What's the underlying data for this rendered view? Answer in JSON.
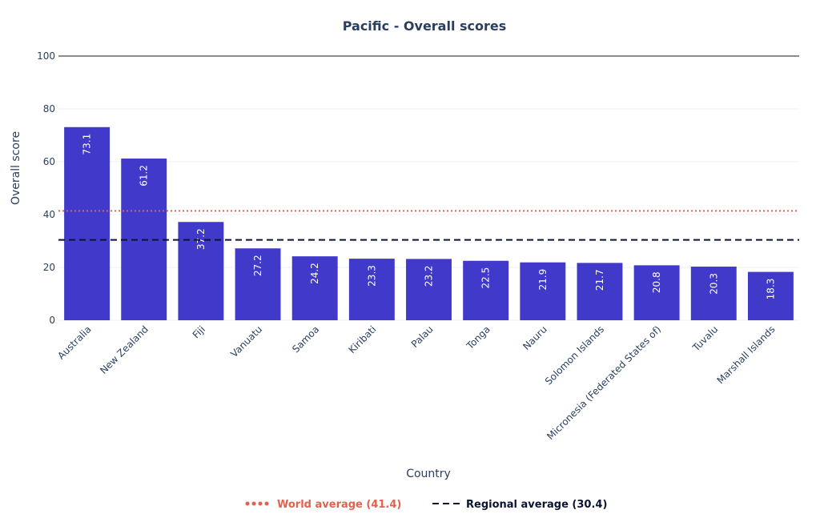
{
  "chart_data": {
    "type": "bar",
    "title": "Pacific - Overall scores",
    "xlabel": "Country",
    "ylabel": "Overall score",
    "ylim": [
      0,
      100
    ],
    "yticks": [
      0,
      20,
      40,
      60,
      80,
      100
    ],
    "categories": [
      "Australia",
      "New Zealand",
      "Fiji",
      "Vanuatu",
      "Samoa",
      "Kiribati",
      "Palau",
      "Tonga",
      "Nauru",
      "Solomon Islands",
      "Micronesia (Federated States of)",
      "Tuvalu",
      "Marshall Islands"
    ],
    "values": [
      73.1,
      61.2,
      37.2,
      27.2,
      24.2,
      23.3,
      23.2,
      22.5,
      21.9,
      21.7,
      20.8,
      20.3,
      18.3
    ],
    "value_labels": [
      "73.1",
      "61.2",
      "37.2",
      "27.2",
      "24.2",
      "23.3",
      "23.2",
      "22.5",
      "21.9",
      "21.7",
      "20.8",
      "20.3",
      "18.3"
    ],
    "bar_color": "#4039c9",
    "reference_lines": [
      {
        "name": "World average (41.4)",
        "value": 41.4,
        "style": "dotted",
        "color": "#e0624f"
      },
      {
        "name": "Regional average (30.4)",
        "value": 30.4,
        "style": "dashed",
        "color": "#0b1533"
      }
    ],
    "legend_position": "bottom-center"
  }
}
